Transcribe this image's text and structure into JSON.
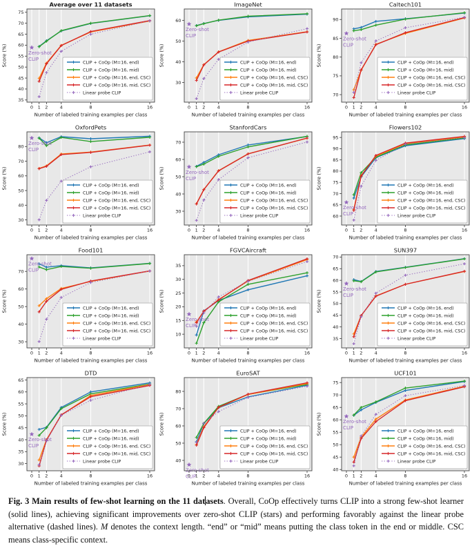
{
  "figure_label": "Fig. 3",
  "zero_shot_label": [
    "Zero-shot",
    "CLIP"
  ],
  "axes_common": {
    "x": [
      1,
      2,
      4,
      8,
      16
    ],
    "xticks": [
      0,
      1,
      2,
      4,
      8,
      16
    ],
    "xlabel": "Number of labeled training examples per class",
    "ylabel": "Score (%)",
    "plot_bg": "#e8e8e8",
    "grid_color": "#ffffff",
    "spine_color": "#444444",
    "zero_shot_color": "#9467bd",
    "legend_position": "lower right"
  },
  "legend": {
    "entries": [
      {
        "key": "end",
        "label": "CLIP + CoOp (M=16, end)",
        "color": "#1f77b4",
        "dash": "solid"
      },
      {
        "key": "mid",
        "label": "CLIP + CoOp (M=16, mid)",
        "color": "#2ca02c",
        "dash": "solid"
      },
      {
        "key": "end_csc",
        "label": "CLIP + CoOp (M=16, end, CSC)",
        "color": "#ff7f0e",
        "dash": "solid"
      },
      {
        "key": "mid_csc",
        "label": "CLIP + CoOp (M=16, mid, CSC)",
        "color": "#d62728",
        "dash": "solid"
      },
      {
        "key": "linear",
        "label": "Linear probe CLIP",
        "color": "#9467bd",
        "dash": "dotted"
      }
    ]
  },
  "chart_data": [
    {
      "type": "line",
      "title": "Average over 11 datasets",
      "title_bold": true,
      "ylim": [
        34,
        76.5
      ],
      "yticks": [
        35,
        40,
        45,
        50,
        55,
        60,
        65,
        70,
        75
      ],
      "zero_shot": 58.9,
      "series": {
        "end": [
          59.4,
          62.0,
          66.5,
          69.9,
          73.4
        ],
        "mid": [
          59.3,
          61.8,
          66.6,
          70.0,
          73.5
        ],
        "end_csc": [
          44.9,
          51.8,
          59.9,
          66.0,
          71.0
        ],
        "mid_csc": [
          43.5,
          51.5,
          59.8,
          66.2,
          71.2
        ],
        "linear": [
          36.5,
          47.5,
          57.2,
          65.0,
          71.1
        ]
      }
    },
    {
      "type": "line",
      "title": "ImageNet",
      "title_bold": false,
      "ylim": [
        20.5,
        65.5
      ],
      "yticks": [
        30,
        40,
        50,
        60
      ],
      "zero_shot": 58.2,
      "series": {
        "end": [
          57.5,
          58.5,
          60.0,
          61.7,
          63.0
        ],
        "mid": [
          57.4,
          58.4,
          60.1,
          62.0,
          63.2
        ],
        "end_csc": [
          32.2,
          38.6,
          44.8,
          50.3,
          54.5
        ],
        "mid_csc": [
          31.0,
          38.5,
          44.7,
          50.0,
          54.4
        ],
        "linear": [
          22.2,
          31.9,
          41.2,
          49.5,
          56.0
        ]
      }
    },
    {
      "type": "line",
      "title": "Caltech101",
      "title_bold": false,
      "ylim": [
        68,
        92.8
      ],
      "yticks": [
        70,
        75,
        80,
        85,
        90
      ],
      "zero_shot": 86.3,
      "series": {
        "end": [
          87.5,
          87.9,
          89.5,
          90.2,
          91.7
        ],
        "mid": [
          87.0,
          87.3,
          88.5,
          90.1,
          91.8
        ],
        "end_csc": [
          71.3,
          76.5,
          83.4,
          86.3,
          90.4
        ],
        "mid_csc": [
          69.2,
          76.6,
          83.3,
          86.5,
          90.5
        ],
        "linear": [
          70.6,
          78.5,
          84.3,
          87.8,
          90.6
        ]
      }
    },
    {
      "type": "line",
      "title": "OxfordPets",
      "title_bold": false,
      "ylim": [
        26.5,
        90
      ],
      "yticks": [
        30,
        40,
        50,
        60,
        70,
        80
      ],
      "zero_shot": 85.8,
      "series": {
        "end": [
          85.9,
          82.6,
          86.7,
          85.3,
          87.0
        ],
        "mid": [
          85.7,
          80.6,
          86.2,
          83.4,
          86.3
        ],
        "end_csc": [
          65.1,
          66.8,
          74.9,
          76.2,
          81.0
        ],
        "mid_csc": [
          64.9,
          66.5,
          74.5,
          76.0,
          80.9
        ],
        "linear": [
          30.1,
          43.3,
          56.4,
          66.2,
          76.4
        ]
      }
    },
    {
      "type": "line",
      "title": "StanfordCars",
      "title_bold": false,
      "ylim": [
        22,
        76
      ],
      "yticks": [
        30,
        40,
        50,
        60,
        70
      ],
      "zero_shot": 55.7,
      "series": {
        "end": [
          56.0,
          58.3,
          62.7,
          68.4,
          73.3
        ],
        "mid": [
          55.8,
          57.3,
          61.8,
          67.3,
          73.4
        ],
        "end_csc": [
          34.3,
          42.6,
          53.5,
          63.3,
          72.3
        ],
        "mid_csc": [
          34.2,
          42.5,
          53.4,
          63.2,
          72.4
        ],
        "linear": [
          24.7,
          36.5,
          48.3,
          61.0,
          70.1
        ]
      }
    },
    {
      "type": "line",
      "title": "Flowers102",
      "title_bold": false,
      "ylim": [
        56,
        97.5
      ],
      "yticks": [
        60,
        65,
        70,
        75,
        80,
        85,
        90,
        95
      ],
      "zero_shot": 66.1,
      "series": {
        "end": [
          68.0,
          77.5,
          86.0,
          91.3,
          94.5
        ],
        "mid": [
          69.5,
          79.3,
          86.2,
          91.7,
          94.8
        ],
        "end_csc": [
          63.0,
          78.0,
          86.7,
          92.2,
          95.2
        ],
        "mid_csc": [
          62.5,
          77.8,
          87.0,
          92.5,
          95.5
        ],
        "linear": [
          58.2,
          73.3,
          84.8,
          92.0,
          94.9
        ]
      }
    },
    {
      "type": "line",
      "title": "Food101",
      "title_bold": false,
      "ylim": [
        26.5,
        79.5
      ],
      "yticks": [
        30,
        40,
        50,
        60,
        70
      ],
      "zero_shot": 77.3,
      "series": {
        "end": [
          74.3,
          72.4,
          73.3,
          72.0,
          74.6
        ],
        "mid": [
          72.5,
          71.0,
          72.8,
          71.8,
          74.5
        ],
        "end_csc": [
          50.5,
          54.5,
          60.3,
          64.3,
          70.2
        ],
        "mid_csc": [
          47.0,
          53.0,
          59.8,
          64.5,
          70.3
        ],
        "linear": [
          30.1,
          42.8,
          55.2,
          63.7,
          70.2
        ]
      }
    },
    {
      "type": "line",
      "title": "FGVCAircraft",
      "title_bold": false,
      "ylim": [
        5,
        39
      ],
      "yticks": [
        10,
        15,
        20,
        25,
        30,
        35
      ],
      "zero_shot": 17.3,
      "series": {
        "end": [
          9.7,
          18.5,
          22.3,
          26.2,
          31.3
        ],
        "mid": [
          6.7,
          14.2,
          21.8,
          28.2,
          32.4
        ],
        "end_csc": [
          14.5,
          18.3,
          22.6,
          29.4,
          37.2
        ],
        "mid_csc": [
          14.2,
          18.4,
          22.5,
          29.6,
          37.5
        ],
        "linear": [
          12.9,
          17.8,
          23.6,
          29.3,
          36.5
        ]
      }
    },
    {
      "type": "line",
      "title": "SUN397",
      "title_bold": false,
      "ylim": [
        31,
        71
      ],
      "yticks": [
        35,
        40,
        45,
        50,
        55,
        60,
        65,
        70
      ],
      "zero_shot": 58.6,
      "series": {
        "end": [
          60.3,
          59.5,
          63.8,
          65.6,
          69.3
        ],
        "mid": [
          59.8,
          59.4,
          63.6,
          65.5,
          69.2
        ],
        "end_csc": [
          37.0,
          44.8,
          53.3,
          58.3,
          63.8
        ],
        "mid_csc": [
          35.8,
          44.9,
          53.2,
          58.3,
          63.9
        ],
        "linear": [
          32.8,
          44.4,
          54.5,
          62.2,
          67.1
        ]
      }
    },
    {
      "type": "line",
      "title": "DTD",
      "title_bold": false,
      "ylim": [
        27,
        66
      ],
      "yticks": [
        30,
        35,
        40,
        45,
        50,
        55,
        60,
        65
      ],
      "zero_shot": 42.3,
      "series": {
        "end": [
          44.3,
          45.2,
          53.5,
          60.0,
          63.8
        ],
        "mid": [
          41.8,
          45.0,
          53.0,
          59.2,
          63.3
        ],
        "end_csc": [
          31.5,
          40.0,
          50.3,
          58.5,
          63.1
        ],
        "mid_csc": [
          29.0,
          39.8,
          50.4,
          58.0,
          62.7
        ],
        "linear": [
          29.5,
          39.5,
          50.2,
          56.5,
          63.2
        ]
      }
    },
    {
      "type": "line",
      "title": "EuroSAT",
      "title_bold": false,
      "ylim": [
        34,
        88
      ],
      "yticks": [
        40,
        50,
        60,
        70,
        80
      ],
      "zero_shot": 37.5,
      "series": {
        "end": [
          50.8,
          61.3,
          70.5,
          76.8,
          83.5
        ],
        "mid": [
          53.3,
          61.5,
          71.3,
          78.3,
          84.0
        ],
        "end_csc": [
          49.3,
          59.5,
          70.7,
          78.2,
          84.5
        ],
        "mid_csc": [
          48.8,
          59.0,
          70.8,
          78.4,
          85.0
        ],
        "linear": [
          50.5,
          61.5,
          68.3,
          76.5,
          83.0
        ]
      }
    },
    {
      "type": "line",
      "title": "UCF101",
      "title_bold": false,
      "ylim": [
        39.5,
        77
      ],
      "yticks": [
        40,
        45,
        50,
        55,
        60,
        65,
        70,
        75
      ],
      "zero_shot": 61.4,
      "series": {
        "end": [
          61.8,
          64.0,
          67.0,
          71.8,
          75.4
        ],
        "mid": [
          61.9,
          65.0,
          67.2,
          72.8,
          75.6
        ],
        "end_csc": [
          45.0,
          53.0,
          60.3,
          68.0,
          73.5
        ],
        "mid_csc": [
          43.0,
          52.5,
          59.3,
          67.7,
          73.3
        ],
        "linear": [
          41.5,
          53.5,
          62.2,
          69.7,
          73.8
        ]
      }
    }
  ],
  "caption": {
    "segments": [
      {
        "text": "Fig. 3 Main results of few-shot learning on the 11 dat",
        "style": "bold"
      },
      {
        "text": "",
        "style": "caret"
      },
      {
        "text": "asets",
        "style": "bold"
      },
      {
        "text": ". Overall, CoOp effectively turns CLIP into a strong few-shot learner (solid lines), achieving significant improvements over zero-shot CLIP (stars) and performing favorably against the linear probe alternative (dashed lines). ",
        "style": "normal"
      },
      {
        "text": "M",
        "style": "italic"
      },
      {
        "text": " denotes the context length. “end” or “mid” means putting the class token in the end or middle. CSC means class-specific context.",
        "style": "normal"
      }
    ]
  }
}
